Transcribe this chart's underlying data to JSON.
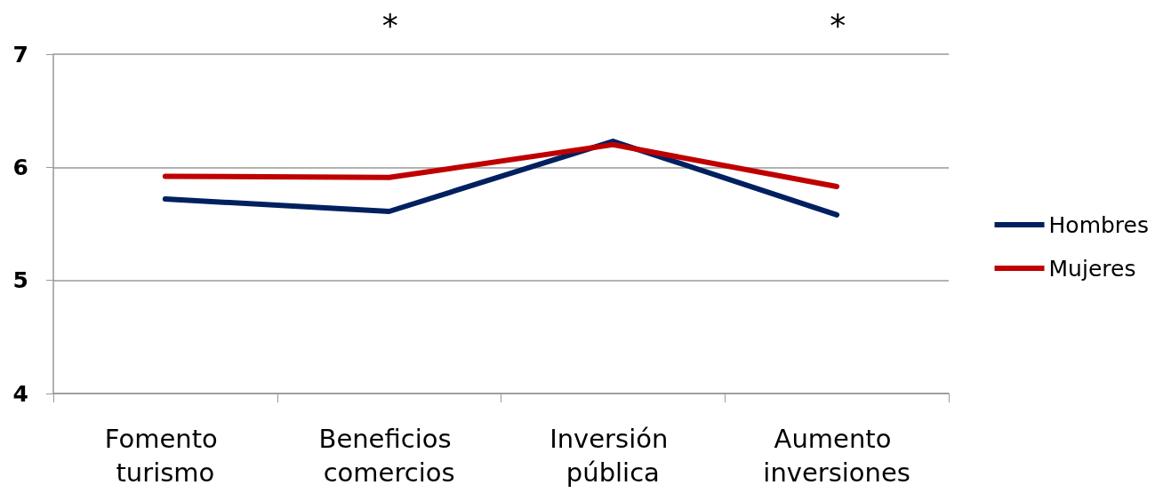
{
  "chart_data": {
    "type": "line",
    "categories": [
      "Fomento turismo",
      "Beneficios comercios",
      "Inversión pública",
      "Aumento inversiones"
    ],
    "series": [
      {
        "name": "Hombres",
        "color": "#002060",
        "values": [
          5.72,
          5.61,
          6.23,
          5.58
        ]
      },
      {
        "name": "Mujeres",
        "color": "#c00000",
        "values": [
          5.92,
          5.91,
          6.2,
          5.83
        ]
      }
    ],
    "ylim": [
      4,
      7
    ],
    "yticks": [
      4,
      5,
      6,
      7
    ],
    "grid": "y",
    "legend": "right",
    "marker": "none",
    "line_style": "solid",
    "annotations": [
      "*",
      "*"
    ]
  }
}
